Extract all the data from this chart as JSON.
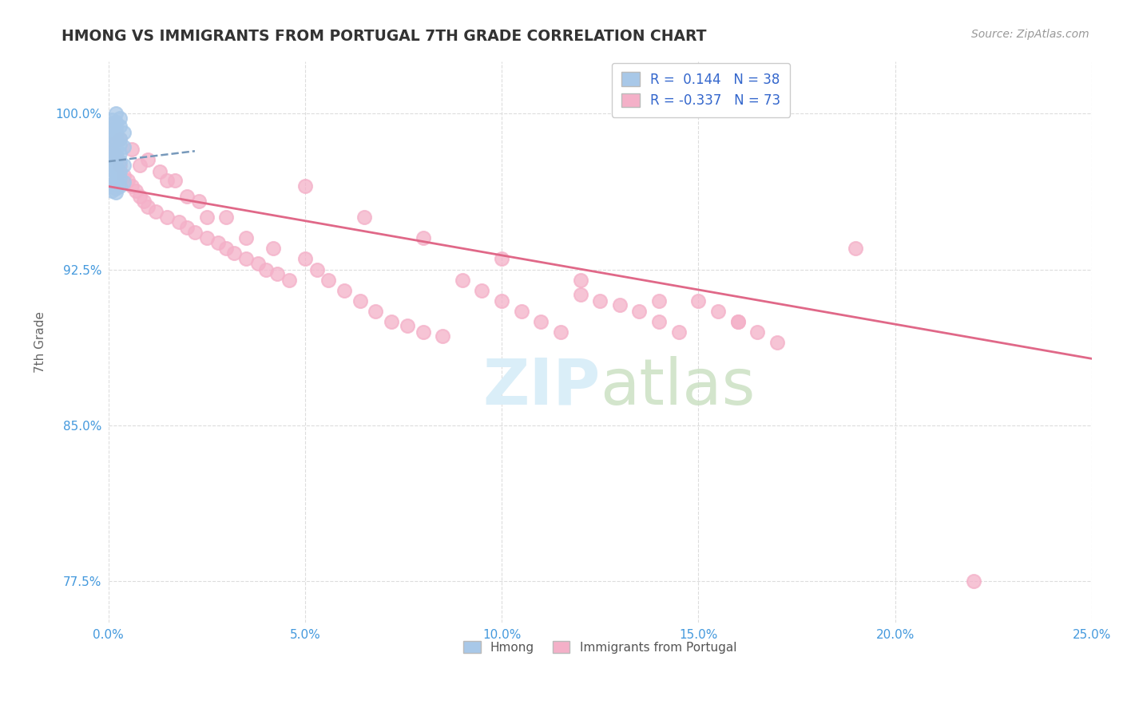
{
  "title": "HMONG VS IMMIGRANTS FROM PORTUGAL 7TH GRADE CORRELATION CHART",
  "source_text": "Source: ZipAtlas.com",
  "ylabel": "7th Grade",
  "xlabel": "",
  "xlim": [
    0.0,
    0.25
  ],
  "ylim": [
    0.755,
    1.025
  ],
  "yticks": [
    0.775,
    0.85,
    0.925,
    1.0
  ],
  "ytick_labels": [
    "77.5%",
    "85.0%",
    "92.5%",
    "100.0%"
  ],
  "xticks": [
    0.0,
    0.05,
    0.1,
    0.15,
    0.2,
    0.25
  ],
  "xtick_labels": [
    "0.0%",
    "5.0%",
    "10.0%",
    "15.0%",
    "20.0%",
    "25.0%"
  ],
  "hmong_R": 0.144,
  "hmong_N": 38,
  "portugal_R": -0.337,
  "portugal_N": 73,
  "hmong_color": "#a8c8e8",
  "portugal_color": "#f4b0c8",
  "hmong_line_color": "#7799bb",
  "portugal_line_color": "#e06888",
  "title_color": "#333333",
  "axis_label_color": "#666666",
  "tick_color": "#4499dd",
  "grid_color": "#dddddd",
  "watermark_color": "#daeef8",
  "legend_R_color": "#3366cc",
  "hmong_x": [
    0.002,
    0.003,
    0.001,
    0.002,
    0.001,
    0.003,
    0.002,
    0.001,
    0.004,
    0.002,
    0.001,
    0.003,
    0.002,
    0.001,
    0.003,
    0.004,
    0.002,
    0.001,
    0.003,
    0.002,
    0.001,
    0.002,
    0.003,
    0.001,
    0.004,
    0.002,
    0.001,
    0.003,
    0.002,
    0.001,
    0.003,
    0.002,
    0.004,
    0.001,
    0.003,
    0.002,
    0.001,
    0.002
  ],
  "hmong_y": [
    1.0,
    0.998,
    0.997,
    0.996,
    0.995,
    0.994,
    0.993,
    0.992,
    0.991,
    0.99,
    0.989,
    0.988,
    0.987,
    0.986,
    0.985,
    0.984,
    0.983,
    0.982,
    0.981,
    0.98,
    0.979,
    0.978,
    0.977,
    0.976,
    0.975,
    0.974,
    0.973,
    0.972,
    0.971,
    0.97,
    0.969,
    0.968,
    0.967,
    0.966,
    0.965,
    0.964,
    0.963,
    0.962
  ],
  "hmong_trend_x0": 0.0,
  "hmong_trend_x1": 0.022,
  "hmong_trend_y0": 0.977,
  "hmong_trend_y1": 0.982,
  "portugal_trend_x0": 0.0,
  "portugal_trend_x1": 0.25,
  "portugal_trend_y0": 0.965,
  "portugal_trend_y1": 0.882,
  "portugal_x": [
    0.001,
    0.002,
    0.003,
    0.004,
    0.005,
    0.006,
    0.007,
    0.008,
    0.009,
    0.01,
    0.012,
    0.015,
    0.018,
    0.02,
    0.022,
    0.025,
    0.028,
    0.03,
    0.032,
    0.035,
    0.038,
    0.04,
    0.043,
    0.046,
    0.05,
    0.053,
    0.056,
    0.06,
    0.064,
    0.068,
    0.072,
    0.076,
    0.08,
    0.085,
    0.09,
    0.095,
    0.1,
    0.105,
    0.11,
    0.115,
    0.12,
    0.125,
    0.13,
    0.135,
    0.14,
    0.145,
    0.15,
    0.155,
    0.16,
    0.165,
    0.17,
    0.008,
    0.015,
    0.02,
    0.025,
    0.035,
    0.05,
    0.065,
    0.08,
    0.1,
    0.12,
    0.14,
    0.16,
    0.003,
    0.006,
    0.01,
    0.013,
    0.017,
    0.023,
    0.03,
    0.042,
    0.19,
    0.22
  ],
  "portugal_y": [
    0.985,
    0.98,
    0.975,
    0.97,
    0.968,
    0.965,
    0.963,
    0.96,
    0.958,
    0.955,
    0.953,
    0.95,
    0.948,
    0.945,
    0.943,
    0.94,
    0.938,
    0.935,
    0.933,
    0.93,
    0.928,
    0.925,
    0.923,
    0.92,
    0.93,
    0.925,
    0.92,
    0.915,
    0.91,
    0.905,
    0.9,
    0.898,
    0.895,
    0.893,
    0.92,
    0.915,
    0.91,
    0.905,
    0.9,
    0.895,
    0.913,
    0.91,
    0.908,
    0.905,
    0.9,
    0.895,
    0.91,
    0.905,
    0.9,
    0.895,
    0.89,
    0.975,
    0.968,
    0.96,
    0.95,
    0.94,
    0.965,
    0.95,
    0.94,
    0.93,
    0.92,
    0.91,
    0.9,
    0.988,
    0.983,
    0.978,
    0.972,
    0.968,
    0.958,
    0.95,
    0.935,
    0.935,
    0.775
  ]
}
